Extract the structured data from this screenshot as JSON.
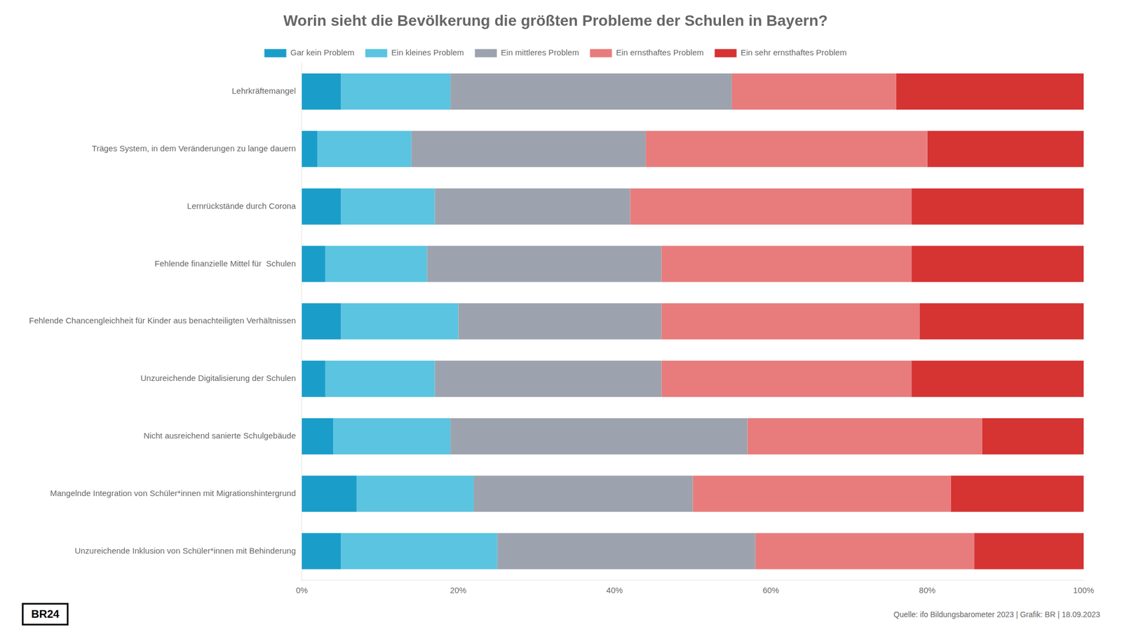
{
  "chart_data": {
    "type": "bar",
    "orientation": "horizontal",
    "stacked": true,
    "title": "Worin sieht die Bevölkerung die größten Probleme der Schulen in Bayern?",
    "categories": [
      "Lehrkräftemangel",
      "Träges System, in dem Veränderungen zu lange dauern",
      "Lernrückstände durch Corona",
      "Fehlende finanzielle Mittel für  Schulen",
      "Fehlende Chancengleichheit für Kinder aus benachteiligten Verhältnissen",
      "Unzureichende Digitalisierung der Schulen",
      "Nicht ausreichend sanierte Schulgebäude",
      "Mangelnde Integration von Schüler*innen mit Migrationshintergrund",
      "Unzureichende Inklusion von Schüler*innen mit Behinderung"
    ],
    "series": [
      {
        "name": "Gar kein Problem",
        "color": "#1a9ec9",
        "values": [
          5,
          2,
          5,
          3,
          5,
          3,
          4,
          7,
          5
        ]
      },
      {
        "name": "Ein kleines Problem",
        "color": "#5bc4e0",
        "values": [
          14,
          12,
          12,
          13,
          15,
          14,
          15,
          15,
          20
        ]
      },
      {
        "name": "Ein mittleres Problem",
        "color": "#9da3ae",
        "values": [
          36,
          30,
          25,
          30,
          26,
          29,
          38,
          28,
          33
        ]
      },
      {
        "name": "Ein ernsthaftes Problem",
        "color": "#e87c7c",
        "values": [
          21,
          36,
          36,
          32,
          33,
          32,
          30,
          33,
          28
        ]
      },
      {
        "name": "Ein sehr ernsthaftes Problem",
        "color": "#d63333",
        "values": [
          24,
          20,
          22,
          22,
          21,
          22,
          13,
          17,
          14
        ]
      }
    ],
    "xlim": [
      0,
      100
    ],
    "xticks": [
      {
        "value": 0,
        "label": "0%"
      },
      {
        "value": 20,
        "label": "20%"
      },
      {
        "value": 40,
        "label": "40%"
      },
      {
        "value": 60,
        "label": "60%"
      },
      {
        "value": 80,
        "label": "80%"
      },
      {
        "value": 100,
        "label": "100%"
      }
    ],
    "grid": false,
    "legend": "top",
    "annotations": [
      "BR24",
      "Quelle: ifo Bildungsbarometer 2023 | Grafik: BR | 18.09.2023"
    ]
  }
}
